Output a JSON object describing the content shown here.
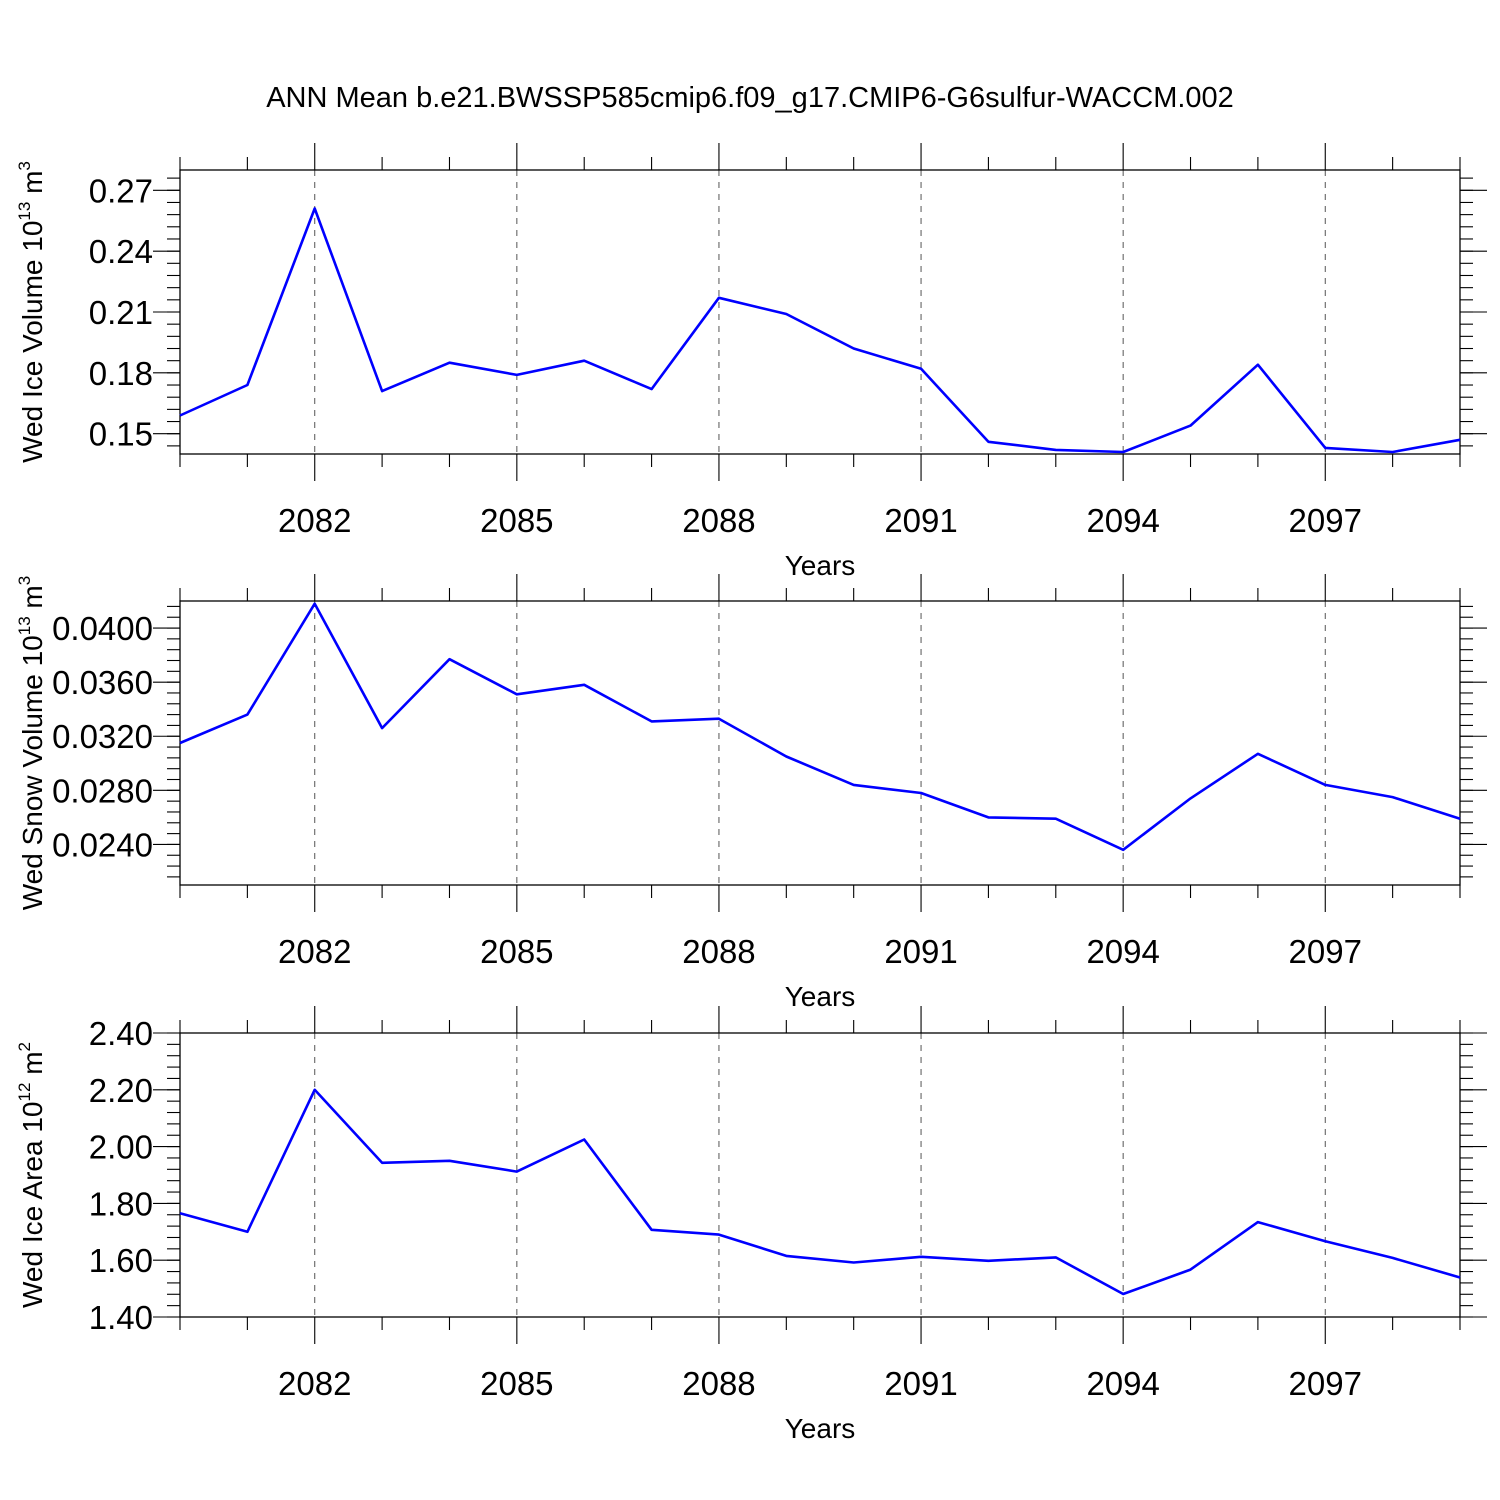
{
  "title": "ANN Mean b.e21.BWSSP585cmip6.f09_g17.CMIP6-G6sulfur-WACCM.002",
  "line_color": "#0000ff",
  "chart_data": [
    {
      "type": "line",
      "ylabel": {
        "main": "Wed Ice Volume 10",
        "exp": "13",
        "unit": " m",
        "unit_exp": "3"
      },
      "xlabel": "Years",
      "xlim": [
        2080,
        2099
      ],
      "xticks": [
        2082,
        2085,
        2088,
        2091,
        2094,
        2097
      ],
      "ylim": [
        0.14,
        0.28
      ],
      "yticks": [
        0.15,
        0.18,
        0.21,
        0.24,
        0.27
      ],
      "ytick_decimals": 2,
      "yminor_step": 0.006,
      "x": [
        2080,
        2081,
        2082,
        2083,
        2084,
        2085,
        2086,
        2087,
        2088,
        2089,
        2090,
        2091,
        2092,
        2093,
        2094,
        2095,
        2096,
        2097,
        2098,
        2099
      ],
      "values": [
        0.159,
        0.174,
        0.261,
        0.171,
        0.185,
        0.179,
        0.186,
        0.172,
        0.217,
        0.209,
        0.192,
        0.182,
        0.146,
        0.142,
        0.141,
        0.154,
        0.184,
        0.143,
        0.141,
        0.147
      ]
    },
    {
      "type": "line",
      "ylabel": {
        "main": "Wed Snow Volume 10",
        "exp": "13",
        "unit": " m",
        "unit_exp": "3"
      },
      "xlabel": "Years",
      "xlim": [
        2080,
        2099
      ],
      "xticks": [
        2082,
        2085,
        2088,
        2091,
        2094,
        2097
      ],
      "ylim": [
        0.021,
        0.042
      ],
      "yticks": [
        0.024,
        0.028,
        0.032,
        0.036,
        0.04
      ],
      "ytick_decimals": 4,
      "yminor_step": 0.0008,
      "x": [
        2080,
        2081,
        2082,
        2083,
        2084,
        2085,
        2086,
        2087,
        2088,
        2089,
        2090,
        2091,
        2092,
        2093,
        2094,
        2095,
        2096,
        2097,
        2098,
        2099
      ],
      "values": [
        0.0315,
        0.0336,
        0.0418,
        0.0326,
        0.0377,
        0.0351,
        0.0358,
        0.0331,
        0.0333,
        0.0305,
        0.0284,
        0.0278,
        0.026,
        0.0259,
        0.0236,
        0.0274,
        0.0307,
        0.0284,
        0.0275,
        0.0259
      ]
    },
    {
      "type": "line",
      "ylabel": {
        "main": "Wed Ice Area 10",
        "exp": "12",
        "unit": " m",
        "unit_exp": "2"
      },
      "xlabel": "Years",
      "xlim": [
        2080,
        2099
      ],
      "xticks": [
        2082,
        2085,
        2088,
        2091,
        2094,
        2097
      ],
      "ylim": [
        1.4,
        2.4
      ],
      "yticks": [
        1.4,
        1.6,
        1.8,
        2.0,
        2.2,
        2.4
      ],
      "ytick_decimals": 2,
      "yminor_step": 0.04,
      "x": [
        2080,
        2081,
        2082,
        2083,
        2084,
        2085,
        2086,
        2087,
        2088,
        2089,
        2090,
        2091,
        2092,
        2093,
        2094,
        2095,
        2096,
        2097,
        2098,
        2099
      ],
      "values": [
        1.765,
        1.7,
        2.2,
        1.943,
        1.95,
        1.912,
        2.025,
        1.707,
        1.69,
        1.615,
        1.592,
        1.612,
        1.598,
        1.61,
        1.481,
        1.567,
        1.734,
        1.667,
        1.608,
        1.539
      ]
    }
  ]
}
